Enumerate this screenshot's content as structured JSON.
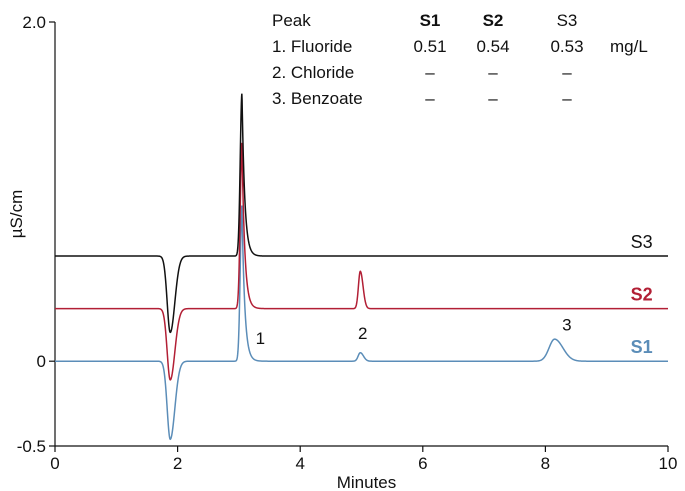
{
  "chart_data": {
    "type": "line",
    "title": "",
    "xlabel": "Minutes",
    "ylabel": "µS/cm",
    "xlim": [
      0,
      10
    ],
    "ylim": [
      -0.5,
      2.0
    ],
    "x_ticks": [
      "0",
      "2",
      "4",
      "6",
      "8",
      "10"
    ],
    "y_tick_labels": [
      {
        "value": 2.0,
        "label": "2.0"
      },
      {
        "value": 0,
        "label": "0"
      },
      {
        "value": -0.5,
        "label": "-0.5"
      }
    ],
    "grid": false,
    "series": [
      {
        "name": "S1",
        "color": "#5b8db8",
        "baseline": 0.0,
        "features": [
          {
            "x": 1.88,
            "dy": -0.46,
            "w": 0.05
          },
          {
            "x": 3.05,
            "dy": 0.92,
            "w": 0.028
          },
          {
            "x": 4.98,
            "dy": 0.05,
            "w": 0.035
          },
          {
            "x": 8.15,
            "dy": 0.13,
            "w": 0.09
          }
        ]
      },
      {
        "name": "S2",
        "color": "#b21f35",
        "baseline": 0.31,
        "features": [
          {
            "x": 1.88,
            "dy": -0.42,
            "w": 0.05
          },
          {
            "x": 3.05,
            "dy": 0.98,
            "w": 0.028
          },
          {
            "x": 4.98,
            "dy": 0.22,
            "w": 0.03
          }
        ]
      },
      {
        "name": "S3",
        "color": "#111111",
        "baseline": 0.62,
        "features": [
          {
            "x": 1.88,
            "dy": -0.45,
            "w": 0.05
          },
          {
            "x": 3.05,
            "dy": 0.96,
            "w": 0.028
          }
        ]
      }
    ],
    "peak_labels": [
      {
        "text": "1",
        "x": 3.35,
        "y": 0.1
      },
      {
        "text": "2",
        "x": 5.02,
        "y": 0.13
      },
      {
        "text": "3",
        "x": 8.35,
        "y": 0.18
      }
    ],
    "legend_table": {
      "header": [
        "Peak",
        "S1",
        "S2",
        "S3",
        ""
      ],
      "rows": [
        [
          "1. Fluoride",
          "0.51",
          "0.54",
          "0.53",
          "mg/L"
        ],
        [
          "2. Chloride",
          "–",
          "–",
          "–",
          ""
        ],
        [
          "3. Benzoate",
          "–",
          "–",
          "–",
          ""
        ]
      ]
    }
  }
}
